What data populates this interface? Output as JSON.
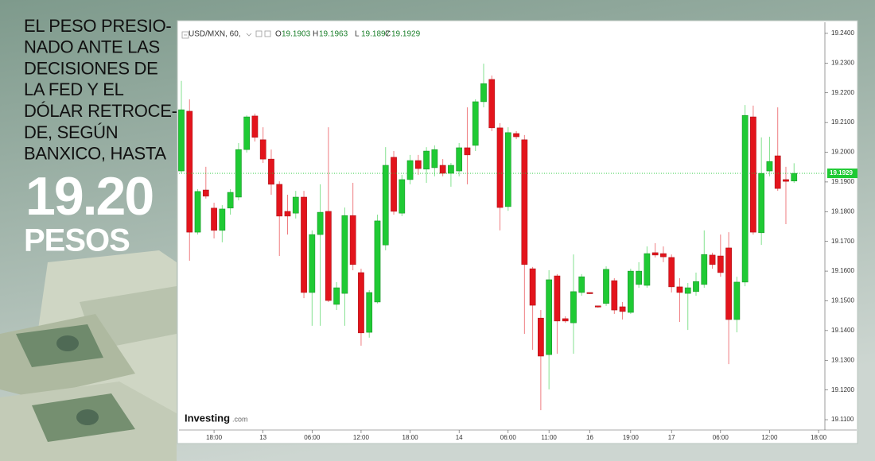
{
  "headline": {
    "lines": [
      "EL PESO PRESIO-",
      "NADO ANTE  LAS",
      "DECISIONES DE",
      "LA FED Y EL",
      "DÓLAR RETROCE-",
      "DE, SEGÚN",
      "BANXICO, HASTA"
    ],
    "value": "19.20",
    "unit": "PESOS"
  },
  "brand": {
    "name": "Investing",
    "suffix": ".com"
  },
  "chart_data": {
    "type": "candlestick",
    "symbol": "USD/MXN, 60,",
    "ohlc_labels": [
      "O",
      "H",
      "L",
      "C"
    ],
    "categories": [
      null,
      null,
      null,
      null,
      "18:00",
      null,
      null,
      null,
      null,
      null,
      "13",
      null,
      null,
      null,
      null,
      null,
      "06:00",
      null,
      null,
      null,
      null,
      null,
      "12:00",
      null,
      null,
      null,
      null,
      null,
      "18:00",
      null,
      null,
      null,
      null,
      null,
      "14",
      null,
      null,
      null,
      null,
      null,
      "06:00",
      null,
      null,
      null,
      null,
      "11:00",
      null,
      null,
      null,
      null,
      "16",
      null,
      null,
      null,
      null,
      "19:00",
      null,
      null,
      null,
      null,
      "17",
      null,
      null,
      null,
      null,
      null,
      "06:00",
      null,
      null,
      null,
      null,
      null,
      "12:00",
      null,
      null,
      null,
      null,
      null,
      "18:00"
    ],
    "open": [
      19.1937,
      19.2138,
      19.1731,
      19.1873,
      19.1812,
      19.1737,
      19.1812,
      19.1849,
      19.2009,
      19.2122,
      19.2042,
      19.1977,
      19.1892,
      19.1801,
      19.1795,
      19.1849,
      19.1528,
      19.1723,
      19.1801,
      19.1488,
      19.1525,
      19.1787,
      19.1595,
      19.1394,
      19.1496,
      19.1688,
      19.1983,
      19.1795,
      19.1908,
      19.1972,
      19.1943,
      19.1948,
      19.1956,
      19.1929,
      19.1937,
      19.2015,
      19.2023,
      19.217,
      19.2245,
      19.2082,
      19.1817,
      19.2063,
      19.2042,
      19.1608,
      19.1442,
      19.1319,
      19.1584,
      19.144,
      19.1426,
      19.1528,
      19.1528,
      19.1483,
      19.1491,
      19.1568,
      19.148,
      19.1461,
      19.1555,
      19.1552,
      19.1662,
      19.1659,
      19.1646,
      19.1547,
      19.1525,
      19.1531,
      19.1555,
      19.1654,
      19.1651,
      19.1678,
      19.1437,
      19.1563,
      19.2119,
      19.1729,
      19.1937,
      19.1988,
      19.1908,
      19.1903,
      null,
      null,
      null
    ],
    "high": [
      19.224,
      19.2178,
      19.1876,
      19.1951,
      19.183,
      19.1822,
      19.1876,
      19.2031,
      19.2124,
      19.213,
      19.2084,
      19.2009,
      19.1902,
      19.1857,
      19.187,
      19.187,
      19.1737,
      19.1892,
      19.2084,
      19.1563,
      19.1814,
      19.1897,
      19.1608,
      19.1536,
      19.179,
      19.2017,
      19.2004,
      19.1924,
      19.1991,
      19.1991,
      19.2017,
      19.2023,
      19.1977,
      19.1964,
      19.2031,
      19.2151,
      19.2178,
      19.2298,
      19.2258,
      19.2098,
      19.2084,
      19.2071,
      19.2058,
      19.1614,
      19.1469,
      19.1603,
      19.159,
      19.1448,
      19.1656,
      19.159,
      19.1528,
      19.1483,
      19.1616,
      19.1576,
      19.1496,
      19.1608,
      19.163,
      19.1683,
      19.1694,
      19.1683,
      19.1656,
      19.1576,
      19.156,
      19.1595,
      19.1737,
      19.1662,
      19.1723,
      19.1731,
      19.1581,
      19.2159,
      19.2157,
      19.205,
      19.2052,
      19.2151,
      19.1951,
      19.1963,
      null,
      null,
      null
    ],
    "low": [
      19.1929,
      19.1635,
      19.1723,
      19.1844,
      19.171,
      19.1697,
      19.179,
      19.1838,
      19.1999,
      19.2036,
      19.1964,
      19.1857,
      19.1651,
      19.1723,
      19.1777,
      19.1509,
      19.1416,
      19.1416,
      19.1496,
      19.1469,
      19.1416,
      19.1603,
      19.1349,
      19.1376,
      19.1491,
      19.167,
      19.179,
      19.1785,
      19.1892,
      19.1924,
      19.1897,
      19.1919,
      19.1919,
      19.1884,
      19.1919,
      19.1892,
      19.2004,
      19.2151,
      19.2071,
      19.1737,
      19.1803,
      19.2044,
      19.1389,
      19.1335,
      19.1132,
      19.1202,
      19.1322,
      19.1426,
      19.1322,
      19.1517,
      19.1523,
      19.1477,
      19.1483,
      19.1456,
      19.1437,
      19.1456,
      19.1544,
      19.1544,
      19.1646,
      19.163,
      19.1528,
      19.1429,
      19.1402,
      19.1517,
      19.1544,
      19.1608,
      19.1581,
      19.1287,
      19.1394,
      19.1549,
      19.1723,
      19.1688,
      19.1919,
      19.187,
      19.1758,
      19.1897,
      null,
      null,
      null
    ],
    "close": [
      19.2143,
      19.1731,
      19.1868,
      19.1852,
      19.1737,
      19.1809,
      19.1865,
      19.2009,
      19.2119,
      19.205,
      19.1977,
      19.1892,
      19.1785,
      19.1785,
      19.1849,
      19.1528,
      19.1723,
      19.1798,
      19.1501,
      19.1544,
      19.1787,
      19.1622,
      19.1392,
      19.1528,
      19.1769,
      19.1956,
      19.1801,
      19.1908,
      19.1972,
      19.1945,
      19.2004,
      19.2009,
      19.1929,
      19.1956,
      19.2015,
      19.1991,
      19.217,
      19.2231,
      19.2082,
      19.1814,
      19.2066,
      19.2052,
      19.1622,
      19.1485,
      19.1314,
      19.1571,
      19.1432,
      19.1432,
      19.1531,
      19.1581,
      19.1525,
      19.148,
      19.1606,
      19.1469,
      19.1464,
      19.16,
      19.16,
      19.1659,
      19.1654,
      19.1648,
      19.1547,
      19.1528,
      19.1544,
      19.1565,
      19.1656,
      19.1622,
      19.1595,
      19.1437,
      19.1563,
      19.2124,
      19.1731,
      19.1929,
      19.1969,
      19.1878,
      19.1902,
      19.1929,
      null,
      null,
      null
    ],
    "up_color": "#1fca34",
    "down_color": "#e3141c",
    "ylim": [
      19.1068,
      19.2432
    ],
    "yticks": [
      {
        "value": 19.24,
        "label": "19.2400"
      },
      {
        "value": 19.23,
        "label": "19.2300"
      },
      {
        "value": 19.22,
        "label": "19.2200"
      },
      {
        "value": 19.21,
        "label": "19.2100"
      },
      {
        "value": 19.2,
        "label": "19.2000"
      },
      {
        "value": 19.19,
        "label": "19.1900"
      },
      {
        "value": 19.18,
        "label": "19.1800"
      },
      {
        "value": 19.17,
        "label": "19.1700"
      },
      {
        "value": 19.16,
        "label": "19.1600"
      },
      {
        "value": 19.15,
        "label": "19.1500"
      },
      {
        "value": 19.14,
        "label": "19.1400"
      },
      {
        "value": 19.13,
        "label": "19.1300"
      },
      {
        "value": 19.12,
        "label": "19.1200"
      },
      {
        "value": 19.11,
        "label": "19.1100"
      }
    ],
    "grid": false,
    "last_price_line": true
  }
}
